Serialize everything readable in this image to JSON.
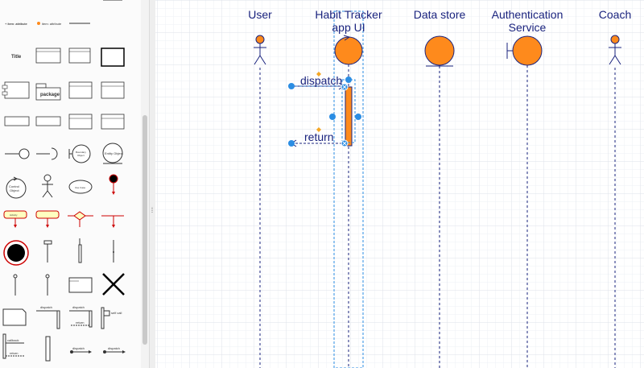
{
  "sidebar": {
    "top_items": [
      "+ item: attribute",
      "item: attribute"
    ],
    "title_shape_label": "Title",
    "package_label": "package",
    "object_labels": {
      "boundary": "Boundary Object",
      "entity": "Entity Object",
      "control": "Control Object",
      "activity": "Activity"
    },
    "message_labels": {
      "dispatch": "dispatch",
      "return": "return",
      "self_call": "self call",
      "callback": "callback"
    }
  },
  "splitter": {
    "handle_icon": "drag-handle-icon",
    "glyph": "⁞"
  },
  "diagram": {
    "lifelines": [
      {
        "id": "user",
        "label": "User",
        "kind": "actor"
      },
      {
        "id": "app",
        "label": "Habit Tracker app UI",
        "kind": "control"
      },
      {
        "id": "store",
        "label": "Data store",
        "kind": "entity"
      },
      {
        "id": "auth",
        "label": "Authentication Service",
        "kind": "boundary"
      },
      {
        "id": "coach",
        "label": "Coach",
        "kind": "actor"
      }
    ],
    "messages": [
      {
        "label": "dispatch",
        "direction": "forward"
      },
      {
        "label": "return",
        "direction": "backward"
      }
    ],
    "colors": {
      "fill": "#fe8a1c",
      "stroke": "#1a237e",
      "selection": "#2b8de3",
      "handle": "#f5a623",
      "grid": "#e4e8ef"
    }
  }
}
